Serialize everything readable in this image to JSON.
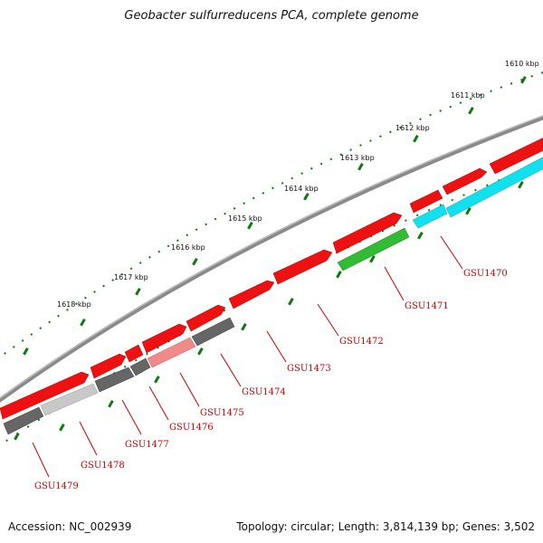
{
  "title": "Geobacter sulfurreducens PCA, complete genome",
  "footer": {
    "accession": "Accession: NC_002939",
    "summary": "Topology: circular; Length: 3,814,139 bp; Genes: 3,502"
  },
  "colors": {
    "forward_gene": "#ee1111",
    "reverse_gray": "#666666",
    "reverse_lightgray": "#c8c8c8",
    "reverse_pink": "#f28a8a",
    "reverse_green": "#33bb33",
    "reverse_cyan": "#11e0ee",
    "backbone": "#8a8a8a",
    "tick": "#117711",
    "label": "#cc0000"
  },
  "kbp_ticks": [
    "1610 kbp",
    "1611 kbp",
    "1612 kbp",
    "1613 kbp",
    "1614 kbp",
    "1615 kbp",
    "1616 kbp",
    "1617 kbp",
    "1618 kbp"
  ],
  "gene_labels": [
    "GSU1470",
    "GSU1471",
    "GSU1472",
    "GSU1473",
    "GSU1474",
    "GSU1475",
    "GSU1476",
    "GSU1477",
    "GSU1478",
    "GSU1479"
  ]
}
